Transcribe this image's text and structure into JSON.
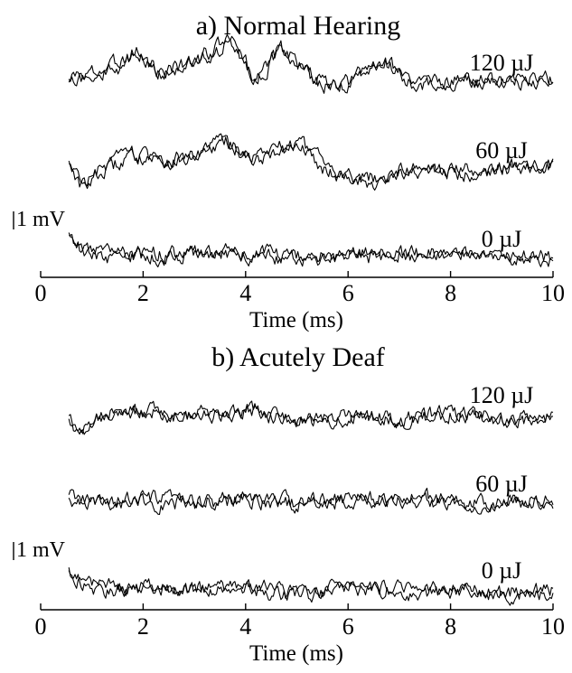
{
  "chart_data": [
    {
      "type": "line",
      "title": "a) Normal Hearing",
      "xlabel": "Time (ms)",
      "xlim": [
        0,
        10
      ],
      "xticks": [
        "0",
        "2",
        "4",
        "6",
        "8",
        "10"
      ],
      "scale_bar": "1 mV",
      "series": [
        {
          "name": "120 µJ",
          "x": [
            0.55,
            1.0,
            1.5,
            1.9,
            2.3,
            3.0,
            3.7,
            4.2,
            4.7,
            5.3,
            5.8,
            6.2,
            6.7,
            7.3,
            8.0,
            9.0,
            10.0
          ],
          "y": [
            0.2,
            0.3,
            0.5,
            0.9,
            0.3,
            0.6,
            1.2,
            0.1,
            1.0,
            0.2,
            -0.2,
            0.2,
            0.7,
            0.0,
            0.0,
            0.1,
            0.1
          ]
        },
        {
          "name": "60 µJ",
          "x": [
            0.55,
            0.8,
            1.2,
            1.8,
            2.4,
            3.0,
            3.6,
            4.1,
            4.6,
            5.1,
            5.6,
            6.0,
            6.5,
            7.0,
            8.0,
            9.0,
            10.0
          ],
          "y": [
            0.3,
            -0.4,
            0.0,
            0.4,
            0.2,
            0.4,
            0.8,
            0.3,
            0.6,
            0.7,
            0.0,
            -0.2,
            -0.3,
            0.0,
            -0.1,
            0.1,
            0.0
          ]
        },
        {
          "name": "0 µJ",
          "x": [
            0.55,
            0.7,
            1.0,
            1.5,
            2.0,
            3.0,
            4.0,
            5.0,
            6.0,
            7.0,
            8.0,
            9.0,
            10.0
          ],
          "y": [
            0.7,
            0.3,
            0.1,
            0.0,
            0.0,
            0.1,
            0.05,
            0.0,
            0.0,
            0.1,
            0.0,
            0.05,
            -0.1
          ]
        }
      ]
    },
    {
      "type": "line",
      "title": "b) Acutely Deaf",
      "xlabel": "Time (ms)",
      "xlim": [
        0,
        10
      ],
      "xticks": [
        "0",
        "2",
        "4",
        "6",
        "8",
        "10"
      ],
      "scale_bar": "1 mV",
      "series": [
        {
          "name": "120 µJ",
          "x": [
            0.55,
            0.75,
            1.0,
            1.5,
            2.0,
            3.0,
            4.0,
            5.0,
            6.0,
            7.0,
            8.0,
            9.0,
            10.0
          ],
          "y": [
            0.0,
            -0.5,
            0.0,
            0.1,
            0.2,
            0.1,
            0.2,
            0.0,
            0.0,
            0.0,
            0.1,
            0.0,
            0.0
          ]
        },
        {
          "name": "60 µJ",
          "x": [
            0.55,
            1.0,
            2.0,
            3.0,
            4.0,
            5.0,
            6.0,
            7.0,
            8.0,
            9.0,
            10.0
          ],
          "y": [
            0.1,
            0.0,
            0.0,
            0.0,
            0.05,
            0.0,
            0.0,
            0.05,
            0.0,
            0.0,
            0.0
          ]
        },
        {
          "name": "0 µJ",
          "x": [
            0.55,
            0.7,
            1.0,
            1.5,
            2.0,
            3.0,
            4.0,
            5.0,
            6.0,
            7.0,
            8.0,
            9.0,
            10.0
          ],
          "y": [
            0.5,
            0.3,
            0.1,
            0.0,
            0.0,
            0.0,
            0.0,
            -0.1,
            0.0,
            0.0,
            -0.1,
            -0.1,
            -0.1
          ]
        }
      ]
    }
  ]
}
